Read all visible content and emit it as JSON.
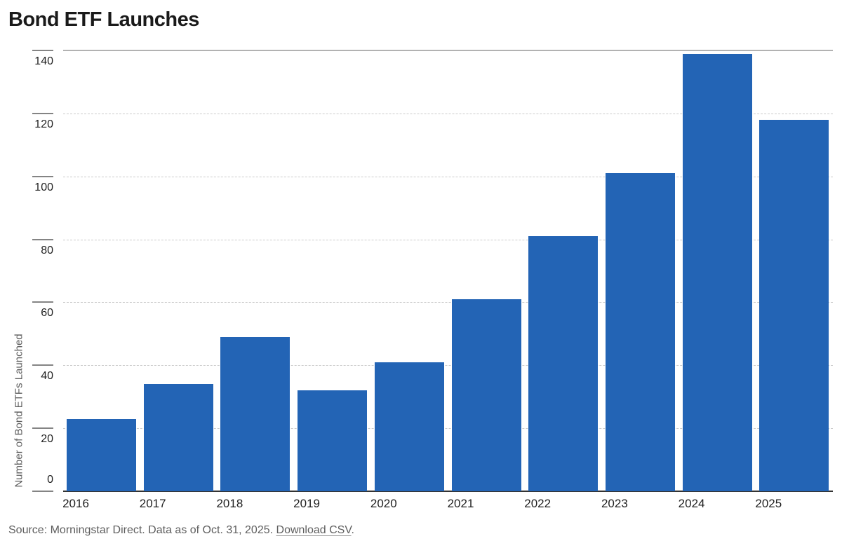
{
  "header": {
    "title": "Bond ETF Launches"
  },
  "chart_data": {
    "type": "bar",
    "title": "Bond ETF Launches",
    "categories": [
      "2016",
      "2017",
      "2018",
      "2019",
      "2020",
      "2021",
      "2022",
      "2023",
      "2024",
      "2025"
    ],
    "values": [
      23,
      34,
      49,
      32,
      41,
      61,
      81,
      101,
      139,
      118
    ],
    "xlabel": "",
    "ylabel": "Number of Bond ETFs Launched",
    "ylim": [
      0,
      140
    ],
    "yticks": [
      0,
      20,
      40,
      60,
      80,
      100,
      120,
      140
    ],
    "grid": "horizontal-dashed",
    "legend": "none",
    "bar_color": "#2364b5"
  },
  "footer": {
    "source_text": "Source: Morningstar Direct. Data as of Oct. 31, 2025.",
    "download_link": "Download CSV",
    "link_suffix": "."
  },
  "colors": {
    "bar": "#2364b5",
    "gridline": "#cbcbcb",
    "top_gridline": "#b2b2b2",
    "axis_baseline": "#333333",
    "muted_text": "#5e5e5e",
    "title_text": "#1a1a1a"
  }
}
